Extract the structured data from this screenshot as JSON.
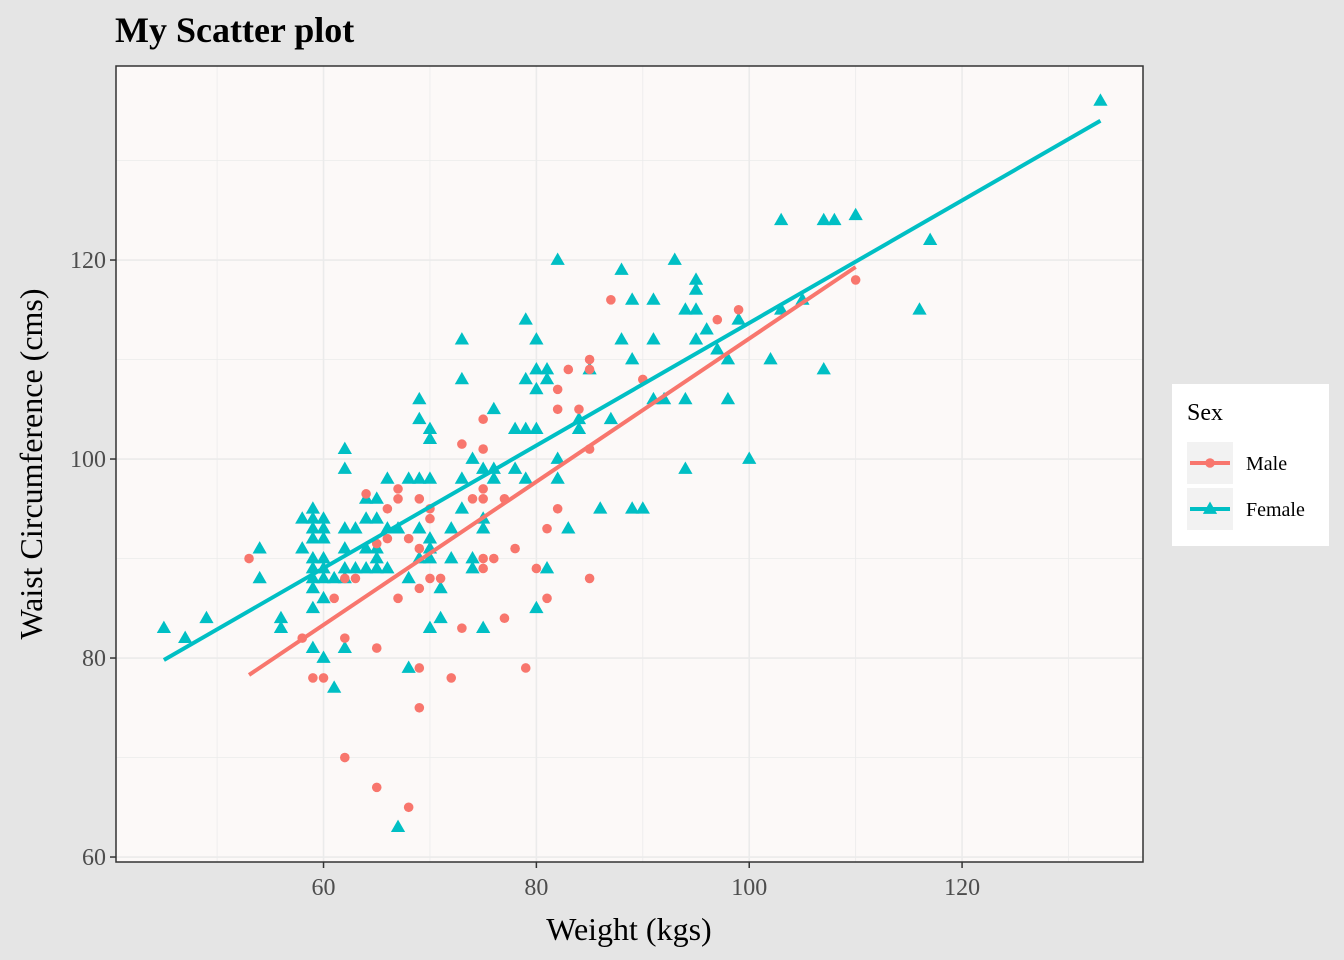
{
  "colors": {
    "male": "#f8766d",
    "female": "#00bfc4",
    "panel": "#fcf9f8",
    "background": "#e5e5e5",
    "grid": "#ebebeb"
  },
  "chart_data": {
    "type": "scatter",
    "title": "My Scatter plot",
    "xlabel": "Weight (kgs)",
    "ylabel": "Waist Circumference (cms)",
    "xlim": [
      40.5,
      137
    ],
    "ylim": [
      59.5,
      139.5
    ],
    "xticks": [
      60,
      80,
      100,
      120
    ],
    "yticks": [
      60,
      80,
      100,
      120
    ],
    "grid": true,
    "legend": {
      "title": "Sex",
      "position": "right"
    },
    "series": [
      {
        "name": "Male",
        "marker": "circle",
        "fit_line": [
          [
            53,
            78.3
          ],
          [
            110,
            119.3
          ]
        ],
        "points": [
          [
            53,
            90
          ],
          [
            58,
            82
          ],
          [
            59,
            78
          ],
          [
            60,
            78
          ],
          [
            61,
            86
          ],
          [
            62,
            88
          ],
          [
            62,
            82
          ],
          [
            62,
            70
          ],
          [
            63,
            88
          ],
          [
            64,
            96.5
          ],
          [
            65,
            91.5
          ],
          [
            65,
            81
          ],
          [
            65,
            67
          ],
          [
            66,
            95
          ],
          [
            66,
            92
          ],
          [
            67,
            97
          ],
          [
            67,
            96
          ],
          [
            67,
            86
          ],
          [
            68,
            92
          ],
          [
            68,
            65
          ],
          [
            69,
            96
          ],
          [
            69,
            91
          ],
          [
            69,
            87
          ],
          [
            69,
            79
          ],
          [
            69,
            75
          ],
          [
            70,
            95
          ],
          [
            70,
            94
          ],
          [
            70,
            88
          ],
          [
            71,
            88
          ],
          [
            72,
            78
          ],
          [
            73,
            101.5
          ],
          [
            73,
            83
          ],
          [
            74,
            96
          ],
          [
            75,
            104
          ],
          [
            75,
            101
          ],
          [
            75,
            97
          ],
          [
            75,
            96
          ],
          [
            75,
            90
          ],
          [
            75,
            89
          ],
          [
            76,
            90
          ],
          [
            77,
            96
          ],
          [
            77,
            84
          ],
          [
            78,
            91
          ],
          [
            79,
            79
          ],
          [
            80,
            89
          ],
          [
            81,
            93
          ],
          [
            81,
            86
          ],
          [
            82,
            107
          ],
          [
            82,
            105
          ],
          [
            82,
            95
          ],
          [
            83,
            109
          ],
          [
            84,
            105
          ],
          [
            85,
            110
          ],
          [
            85,
            109
          ],
          [
            85,
            101
          ],
          [
            85,
            88
          ],
          [
            87,
            116
          ],
          [
            90,
            108
          ],
          [
            97,
            114
          ],
          [
            99,
            115
          ],
          [
            110,
            118
          ]
        ]
      },
      {
        "name": "Female",
        "marker": "triangle",
        "fit_line": [
          [
            45,
            79.8
          ],
          [
            133,
            134
          ]
        ],
        "points": [
          [
            45,
            83
          ],
          [
            47,
            82
          ],
          [
            49,
            84
          ],
          [
            54,
            91
          ],
          [
            54,
            88
          ],
          [
            56,
            84
          ],
          [
            56,
            83
          ],
          [
            58,
            94
          ],
          [
            58,
            91
          ],
          [
            59,
            95
          ],
          [
            59,
            94
          ],
          [
            59,
            93
          ],
          [
            59,
            92
          ],
          [
            59,
            90
          ],
          [
            59,
            89
          ],
          [
            59,
            88
          ],
          [
            59,
            87
          ],
          [
            59,
            85
          ],
          [
            59,
            81
          ],
          [
            60,
            94
          ],
          [
            60,
            93
          ],
          [
            60,
            92
          ],
          [
            60,
            90
          ],
          [
            60,
            89
          ],
          [
            60,
            88
          ],
          [
            60,
            86
          ],
          [
            60,
            80
          ],
          [
            61,
            88
          ],
          [
            61,
            77
          ],
          [
            62,
            101
          ],
          [
            62,
            99
          ],
          [
            62,
            93
          ],
          [
            62,
            91
          ],
          [
            62,
            89
          ],
          [
            62,
            88
          ],
          [
            62,
            81
          ],
          [
            63,
            93
          ],
          [
            63,
            89
          ],
          [
            64,
            96
          ],
          [
            64,
            94
          ],
          [
            64,
            91
          ],
          [
            64,
            89
          ],
          [
            65,
            96
          ],
          [
            65,
            94
          ],
          [
            65,
            91
          ],
          [
            65,
            90
          ],
          [
            65,
            89
          ],
          [
            66,
            98
          ],
          [
            66,
            93
          ],
          [
            66,
            89
          ],
          [
            67,
            93
          ],
          [
            67,
            63
          ],
          [
            68,
            98
          ],
          [
            68,
            88
          ],
          [
            68,
            79
          ],
          [
            69,
            106
          ],
          [
            69,
            104
          ],
          [
            69,
            98
          ],
          [
            69,
            93
          ],
          [
            69,
            90
          ],
          [
            70,
            103
          ],
          [
            70,
            102
          ],
          [
            70,
            98
          ],
          [
            70,
            92
          ],
          [
            70,
            91
          ],
          [
            70,
            90
          ],
          [
            70,
            83
          ],
          [
            71,
            84
          ],
          [
            71,
            87
          ],
          [
            72,
            93
          ],
          [
            72,
            90
          ],
          [
            73,
            112
          ],
          [
            73,
            108
          ],
          [
            73,
            98
          ],
          [
            73,
            95
          ],
          [
            74,
            100
          ],
          [
            74,
            90
          ],
          [
            74,
            89
          ],
          [
            75,
            99
          ],
          [
            75,
            94
          ],
          [
            75,
            93
          ],
          [
            75,
            83
          ],
          [
            76,
            105
          ],
          [
            76,
            99
          ],
          [
            76,
            98
          ],
          [
            78,
            103
          ],
          [
            78,
            99
          ],
          [
            79,
            114
          ],
          [
            79,
            108
          ],
          [
            79,
            103
          ],
          [
            79,
            98
          ],
          [
            80,
            112
          ],
          [
            80,
            109
          ],
          [
            80,
            107
          ],
          [
            80,
            103
          ],
          [
            80,
            85
          ],
          [
            81,
            109
          ],
          [
            81,
            108
          ],
          [
            81,
            89
          ],
          [
            82,
            120
          ],
          [
            82,
            100
          ],
          [
            82,
            98
          ],
          [
            83,
            93
          ],
          [
            84,
            104
          ],
          [
            84,
            103
          ],
          [
            85,
            109
          ],
          [
            86,
            95
          ],
          [
            87,
            104
          ],
          [
            88,
            119
          ],
          [
            88,
            112
          ],
          [
            89,
            116
          ],
          [
            89,
            110
          ],
          [
            89,
            95
          ],
          [
            90,
            95
          ],
          [
            91,
            116
          ],
          [
            91,
            112
          ],
          [
            91,
            106
          ],
          [
            92,
            106
          ],
          [
            93,
            120
          ],
          [
            94,
            115
          ],
          [
            94,
            106
          ],
          [
            94,
            99
          ],
          [
            95,
            118
          ],
          [
            95,
            117
          ],
          [
            95,
            115
          ],
          [
            95,
            112
          ],
          [
            96,
            113
          ],
          [
            97,
            111
          ],
          [
            98,
            110
          ],
          [
            98,
            106
          ],
          [
            99,
            114
          ],
          [
            100,
            100
          ],
          [
            102,
            110
          ],
          [
            103,
            124
          ],
          [
            103,
            115
          ],
          [
            105,
            116
          ],
          [
            107,
            124
          ],
          [
            107,
            109
          ],
          [
            108,
            124
          ],
          [
            110,
            124.5
          ],
          [
            116,
            115
          ],
          [
            117,
            122
          ],
          [
            133,
            136
          ]
        ]
      }
    ]
  }
}
